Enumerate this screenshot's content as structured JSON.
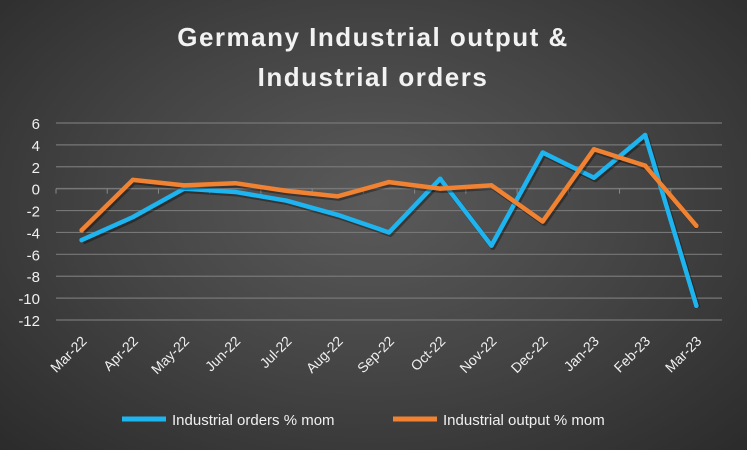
{
  "chart_data": {
    "type": "line",
    "title": [
      "Germany Industrial output &",
      "Industrial orders"
    ],
    "xlabel": "",
    "ylabel": "",
    "categories": [
      "Mar-22",
      "Apr-22",
      "May-22",
      "Jun-22",
      "Jul-22",
      "Aug-22",
      "Sep-22",
      "Oct-22",
      "Nov-22",
      "Dec-22",
      "Jan-23",
      "Feb-23",
      "Mar-23"
    ],
    "ylim": [
      -12,
      6
    ],
    "yticks": [
      6,
      4,
      2,
      0,
      -2,
      -4,
      -6,
      -8,
      -10,
      -12
    ],
    "grid": true,
    "legend_position": "bottom",
    "series": [
      {
        "name": "Industrial orders % mom",
        "color": "#1eb4f0",
        "values": [
          -4.7,
          -2.6,
          0.0,
          -0.3,
          -1.1,
          -2.4,
          -4.0,
          0.9,
          -5.2,
          3.3,
          1.0,
          4.9,
          -10.7
        ]
      },
      {
        "name": "Industrial output % mom",
        "color": "#f08232",
        "values": [
          -3.8,
          0.8,
          0.3,
          0.5,
          -0.2,
          -0.7,
          0.6,
          0.0,
          0.3,
          -3.0,
          3.6,
          2.1,
          -3.4
        ]
      }
    ]
  }
}
